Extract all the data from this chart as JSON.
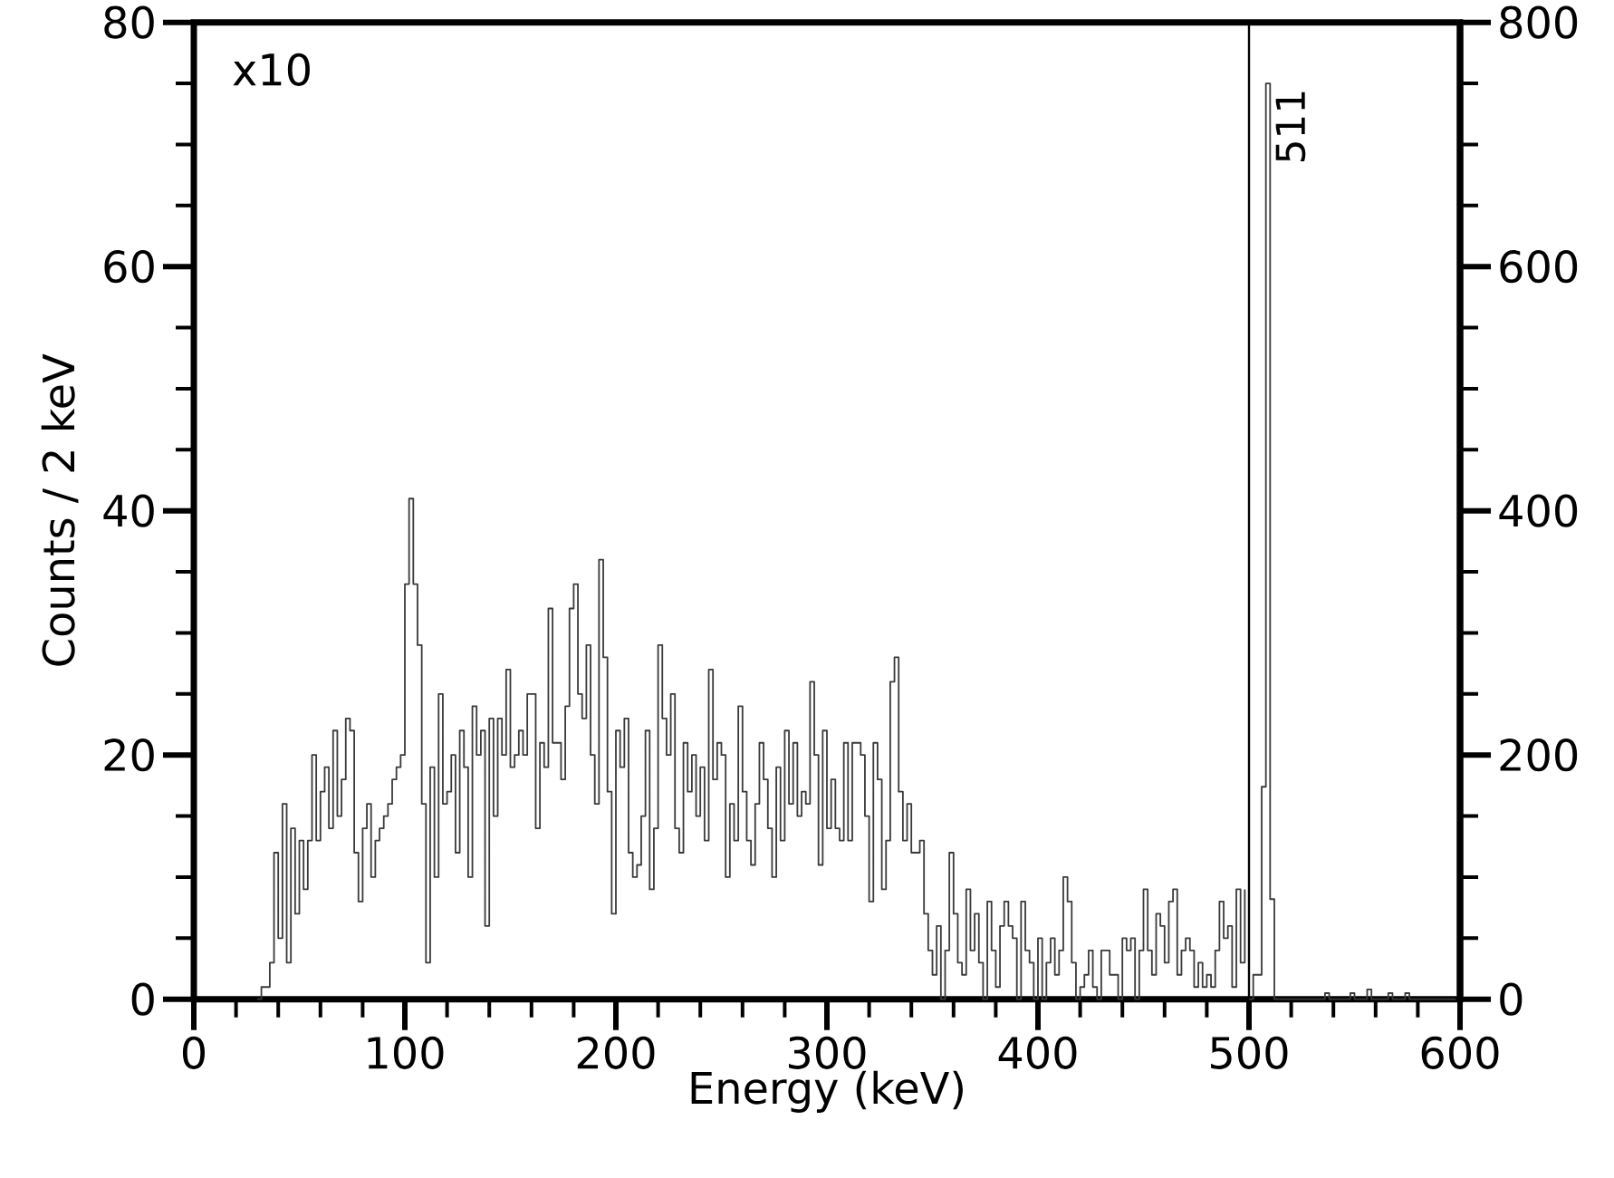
{
  "chart_data": {
    "type": "step",
    "xlabel": "Energy (keV)",
    "ylabel": "Counts / 2 keV",
    "xlim": [
      0,
      600
    ],
    "ylim": [
      0,
      80
    ],
    "y2lim": [
      0,
      800
    ],
    "xticks": [
      0,
      {
        "value": 20,
        "label": null
      },
      {
        "value": 40,
        "label": null
      },
      {
        "value": 60,
        "label": null
      },
      {
        "value": 80,
        "label": null
      },
      100,
      {
        "value": 120,
        "label": null
      },
      {
        "value": 140,
        "label": null
      },
      {
        "value": 160,
        "label": null
      },
      {
        "value": 180,
        "label": null
      },
      200,
      {
        "value": 220,
        "label": null
      },
      {
        "value": 240,
        "label": null
      },
      {
        "value": 260,
        "label": null
      },
      {
        "value": 280,
        "label": null
      },
      300,
      {
        "value": 320,
        "label": null
      },
      {
        "value": 340,
        "label": null
      },
      {
        "value": 360,
        "label": null
      },
      {
        "value": 380,
        "label": null
      },
      400,
      {
        "value": 420,
        "label": null
      },
      {
        "value": 440,
        "label": null
      },
      {
        "value": 460,
        "label": null
      },
      {
        "value": 480,
        "label": null
      },
      500,
      {
        "value": 520,
        "label": null
      },
      {
        "value": 540,
        "label": null
      },
      {
        "value": 560,
        "label": null
      },
      {
        "value": 580,
        "label": null
      },
      600
    ],
    "yticks": [
      0,
      {
        "value": 5,
        "label": null
      },
      {
        "value": 10,
        "label": null
      },
      {
        "value": 15,
        "label": null
      },
      20,
      {
        "value": 25,
        "label": null
      },
      {
        "value": 30,
        "label": null
      },
      {
        "value": 35,
        "label": null
      },
      40,
      {
        "value": 45,
        "label": null
      },
      {
        "value": 50,
        "label": null
      },
      {
        "value": 55,
        "label": null
      },
      60,
      {
        "value": 65,
        "label": null
      },
      {
        "value": 70,
        "label": null
      },
      {
        "value": 75,
        "label": null
      },
      80
    ],
    "y2ticks": [
      0,
      {
        "value": 50,
        "label": null
      },
      {
        "value": 100,
        "label": null
      },
      {
        "value": 150,
        "label": null
      },
      200,
      {
        "value": 250,
        "label": null
      },
      {
        "value": 300,
        "label": null
      },
      {
        "value": 350,
        "label": null
      },
      400,
      {
        "value": 450,
        "label": null
      },
      {
        "value": 500,
        "label": null
      },
      {
        "value": 550,
        "label": null
      },
      600,
      {
        "value": 650,
        "label": null
      },
      {
        "value": 700,
        "label": null
      },
      {
        "value": 750,
        "label": null
      },
      800
    ],
    "series": [
      {
        "color": "#3a3a3a",
        "x": [
          30,
          32,
          34,
          36,
          38,
          40,
          42,
          44,
          46,
          48,
          50,
          52,
          54,
          56,
          58,
          60,
          62,
          64,
          66,
          68,
          70,
          72,
          74,
          76,
          78,
          80,
          82,
          84,
          86,
          88,
          90,
          92,
          94,
          96,
          98,
          100,
          102,
          104,
          106,
          108,
          110,
          112,
          114,
          116,
          118,
          120,
          122,
          124,
          126,
          128,
          130,
          132,
          134,
          136,
          138,
          140,
          142,
          144,
          146,
          148,
          150,
          152,
          154,
          156,
          158,
          160,
          162,
          164,
          166,
          168,
          170,
          172,
          174,
          176,
          178,
          180,
          182,
          184,
          186,
          188,
          190,
          192,
          194,
          196,
          198,
          200,
          202,
          204,
          206,
          208,
          210,
          212,
          214,
          216,
          218,
          220,
          222,
          224,
          226,
          228,
          230,
          232,
          234,
          236,
          238,
          240,
          242,
          244,
          246,
          248,
          250,
          252,
          254,
          256,
          258,
          260,
          262,
          264,
          266,
          268,
          270,
          272,
          274,
          276,
          278,
          280,
          282,
          284,
          286,
          288,
          290,
          292,
          294,
          296,
          298,
          300,
          302,
          304,
          306,
          308,
          310,
          312,
          314,
          316,
          318,
          320,
          322,
          324,
          326,
          328,
          330,
          332,
          334,
          336,
          338,
          340,
          342,
          344,
          346,
          348,
          350,
          352,
          354,
          356,
          358,
          360,
          362,
          364,
          366,
          368,
          370,
          372,
          374,
          376,
          378,
          380,
          382,
          384,
          386,
          388,
          390,
          392,
          394,
          396,
          398,
          400,
          402,
          404,
          406,
          408,
          410,
          412,
          414,
          416,
          418,
          420,
          422,
          424,
          426,
          428,
          430,
          432,
          434,
          436,
          438,
          440,
          442,
          444,
          446,
          448,
          450,
          452,
          454,
          456,
          458,
          460,
          462,
          464,
          466,
          468,
          470,
          472,
          474,
          476,
          478,
          480,
          482,
          484,
          486,
          488,
          490,
          492,
          494,
          496,
          498
        ],
        "values": [
          0,
          1,
          1,
          3,
          12,
          5,
          16,
          3,
          14,
          7,
          13,
          9,
          13,
          20,
          13,
          17,
          19,
          14,
          22,
          15,
          18,
          23,
          22,
          12,
          8,
          14,
          16,
          10,
          13,
          14,
          15,
          16,
          18,
          19,
          20,
          34,
          41,
          34,
          29,
          16,
          3,
          19,
          10,
          25,
          16,
          17,
          20,
          12,
          22,
          19,
          10,
          24,
          20,
          22,
          6,
          23,
          15,
          23,
          20,
          27,
          19,
          20,
          22,
          20,
          25,
          25,
          14,
          21,
          19,
          32,
          21,
          21,
          18,
          24,
          32,
          34,
          25,
          23,
          29,
          20,
          16,
          36,
          28,
          17,
          7,
          22,
          19,
          23,
          12,
          10,
          11,
          15,
          22,
          9,
          14,
          29,
          23,
          20,
          25,
          14,
          12,
          21,
          17,
          20,
          15,
          19,
          13,
          27,
          18,
          21,
          20,
          10,
          16,
          13,
          24,
          17,
          13,
          11,
          16,
          21,
          18,
          14,
          10,
          19,
          13,
          22,
          16,
          21,
          15,
          17,
          16,
          26,
          20,
          11,
          22,
          14,
          18,
          14,
          13,
          21,
          13,
          21,
          21,
          20,
          15,
          8,
          21,
          18,
          9,
          13,
          26,
          28,
          17,
          13,
          16,
          12,
          12,
          13,
          7,
          4,
          2,
          6,
          0,
          4,
          12,
          7,
          3,
          2,
          9,
          4,
          7,
          3,
          0,
          8,
          4,
          1,
          6,
          8,
          6,
          5,
          0,
          8,
          4,
          3,
          0,
          5,
          0,
          3,
          5,
          2,
          4,
          10,
          8,
          3,
          0,
          1,
          2,
          4,
          1,
          0,
          4,
          4,
          2,
          2,
          0,
          5,
          4,
          5,
          0,
          4,
          9,
          4,
          2,
          7,
          6,
          3,
          8,
          9,
          2,
          4,
          5,
          4,
          1,
          3,
          1,
          2,
          1,
          4,
          8,
          5,
          6,
          1,
          9,
          3,
          9
        ]
      },
      {
        "color": "#3a3a3a",
        "axis": "y2",
        "x": [
          500,
          502,
          504,
          506,
          508,
          510,
          512,
          514,
          516,
          518,
          520,
          522,
          524,
          526,
          528,
          530,
          532,
          534,
          536,
          538,
          540,
          542,
          544,
          546,
          548,
          550,
          552,
          554,
          556,
          558,
          560,
          562,
          564,
          566,
          568,
          570,
          572,
          574,
          576,
          578,
          580,
          582,
          584,
          586,
          588,
          590,
          592,
          594,
          596,
          598
        ],
        "values": [
          0,
          20,
          20,
          174,
          750,
          82,
          0,
          0,
          0,
          0,
          0,
          0,
          0,
          0,
          0,
          0,
          0,
          0,
          5,
          0,
          0,
          0,
          0,
          0,
          5,
          0,
          0,
          0,
          8,
          0,
          0,
          0,
          0,
          5,
          0,
          0,
          0,
          5,
          0,
          0,
          0,
          0,
          0,
          0,
          0,
          0,
          0,
          0,
          0,
          0
        ]
      }
    ],
    "ref_lines": [
      {
        "axis": "x",
        "value": 500,
        "color": "#000000"
      }
    ],
    "annotations": [
      "x10",
      "511"
    ]
  }
}
